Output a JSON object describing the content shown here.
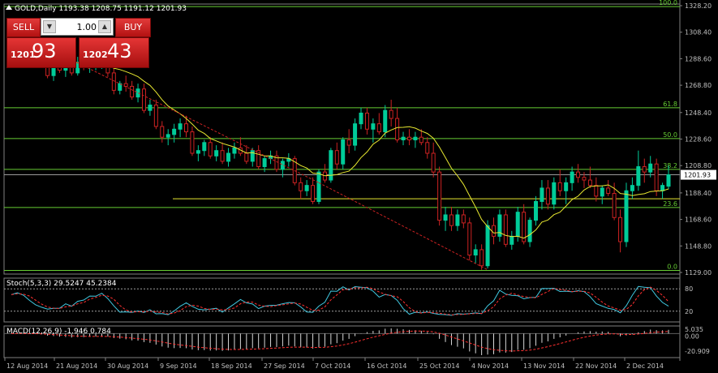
{
  "window": {
    "header": "GOLD,Daily  1193.38 1208.75 1191.12 1201.93"
  },
  "trade_panel": {
    "sell_label": "SELL",
    "buy_label": "BUY",
    "lot_value": "1.00",
    "sell_small": "1201",
    "sell_big": "93",
    "buy_small": "1202",
    "buy_big": "43"
  },
  "price_axis": {
    "ticks": [
      "1328.20",
      "1308.40",
      "1288.60",
      "1268.80",
      "1248.40",
      "1228.60",
      "1208.80",
      "1188.40",
      "1168.60",
      "1148.80",
      "1129.00"
    ],
    "current_price": "1201.93"
  },
  "fibonacci": {
    "levels": [
      {
        "label": "100.0",
        "price": 1327.5
      },
      {
        "label": "61.8",
        "price": 1252.0
      },
      {
        "label": "50.0",
        "price": 1229.0
      },
      {
        "label": "38.2",
        "price": 1206.0
      },
      {
        "label": "23.6",
        "price": 1177.5
      },
      {
        "label": "0.0",
        "price": 1130.5
      }
    ]
  },
  "date_axis": {
    "labels": [
      "12 Aug 2014",
      "21 Aug 2014",
      "30 Aug 2014",
      "9 Sep 2014",
      "18 Sep 2014",
      "27 Sep 2014",
      "7 Oct 2014",
      "16 Oct 2014",
      "25 Oct 2014",
      "4 Nov 2014",
      "13 Nov 2014",
      "22 Nov 2014",
      "2 Dec 2014"
    ]
  },
  "stoch": {
    "title": "Stoch(5,3,3) 29.5247 45.2384",
    "axis": [
      "80",
      "20"
    ]
  },
  "macd": {
    "title": "MACD(12,26,9) -1.946 0.784",
    "axis": [
      "5.035",
      "0.00",
      "-20.909"
    ]
  },
  "colors": {
    "background": "#000000",
    "bull": "#00cc99",
    "bear": "#cc2222",
    "fib": "#66cc33",
    "ma": "#e8e830",
    "stoch_main": "#40c8e0",
    "stoch_signal": "#ff3030",
    "grid_text": "#c0c0c0"
  },
  "chart_data": {
    "type": "candlestick",
    "ylim": [
      1129.0,
      1328.2
    ],
    "candles": [
      [
        1290,
        1300,
        1286,
        1295
      ],
      [
        1295,
        1302,
        1290,
        1298
      ],
      [
        1298,
        1304,
        1292,
        1295
      ],
      [
        1295,
        1300,
        1286,
        1290
      ],
      [
        1290,
        1296,
        1284,
        1292
      ],
      [
        1292,
        1298,
        1286,
        1290
      ],
      [
        1290,
        1294,
        1274,
        1276
      ],
      [
        1276,
        1290,
        1272,
        1285
      ],
      [
        1285,
        1292,
        1278,
        1280
      ],
      [
        1280,
        1286,
        1275,
        1283
      ],
      [
        1283,
        1289,
        1276,
        1278
      ],
      [
        1278,
        1290,
        1276,
        1286
      ],
      [
        1286,
        1292,
        1280,
        1284
      ],
      [
        1284,
        1290,
        1278,
        1285
      ],
      [
        1285,
        1292,
        1280,
        1287
      ],
      [
        1287,
        1293,
        1281,
        1289
      ],
      [
        1289,
        1292,
        1275,
        1278
      ],
      [
        1278,
        1283,
        1262,
        1265
      ],
      [
        1265,
        1272,
        1262,
        1270
      ],
      [
        1270,
        1276,
        1264,
        1268
      ],
      [
        1268,
        1272,
        1258,
        1260
      ],
      [
        1260,
        1270,
        1256,
        1266
      ],
      [
        1266,
        1270,
        1248,
        1250
      ],
      [
        1250,
        1258,
        1246,
        1254
      ],
      [
        1254,
        1258,
        1236,
        1238
      ],
      [
        1238,
        1242,
        1226,
        1230
      ],
      [
        1230,
        1236,
        1224,
        1232
      ],
      [
        1232,
        1240,
        1226,
        1236
      ],
      [
        1236,
        1244,
        1230,
        1240
      ],
      [
        1240,
        1246,
        1230,
        1234
      ],
      [
        1234,
        1238,
        1216,
        1218
      ],
      [
        1218,
        1224,
        1212,
        1220
      ],
      [
        1220,
        1228,
        1216,
        1226
      ],
      [
        1226,
        1230,
        1214,
        1216
      ],
      [
        1216,
        1224,
        1212,
        1220
      ],
      [
        1220,
        1226,
        1210,
        1212
      ],
      [
        1212,
        1222,
        1208,
        1218
      ],
      [
        1218,
        1226,
        1214,
        1222
      ],
      [
        1222,
        1230,
        1216,
        1218
      ],
      [
        1218,
        1224,
        1210,
        1212
      ],
      [
        1212,
        1222,
        1208,
        1220
      ],
      [
        1220,
        1224,
        1206,
        1208
      ],
      [
        1208,
        1216,
        1204,
        1214
      ],
      [
        1214,
        1220,
        1210,
        1216
      ],
      [
        1216,
        1220,
        1204,
        1206
      ],
      [
        1206,
        1214,
        1200,
        1212
      ],
      [
        1212,
        1218,
        1208,
        1214
      ],
      [
        1214,
        1216,
        1194,
        1196
      ],
      [
        1196,
        1200,
        1184,
        1190
      ],
      [
        1190,
        1198,
        1186,
        1194
      ],
      [
        1194,
        1200,
        1180,
        1182
      ],
      [
        1182,
        1206,
        1180,
        1204
      ],
      [
        1204,
        1210,
        1196,
        1198
      ],
      [
        1198,
        1222,
        1196,
        1220
      ],
      [
        1220,
        1226,
        1206,
        1210
      ],
      [
        1210,
        1230,
        1206,
        1228
      ],
      [
        1228,
        1236,
        1218,
        1224
      ],
      [
        1224,
        1244,
        1220,
        1240
      ],
      [
        1240,
        1252,
        1236,
        1248
      ],
      [
        1248,
        1252,
        1232,
        1236
      ],
      [
        1236,
        1244,
        1226,
        1240
      ],
      [
        1240,
        1248,
        1232,
        1234
      ],
      [
        1234,
        1254,
        1230,
        1250
      ],
      [
        1250,
        1258,
        1238,
        1244
      ],
      [
        1244,
        1252,
        1226,
        1228
      ],
      [
        1228,
        1234,
        1224,
        1230
      ],
      [
        1230,
        1236,
        1224,
        1228
      ],
      [
        1228,
        1234,
        1222,
        1230
      ],
      [
        1230,
        1236,
        1224,
        1226
      ],
      [
        1226,
        1230,
        1214,
        1218
      ],
      [
        1218,
        1226,
        1200,
        1204
      ],
      [
        1204,
        1208,
        1164,
        1168
      ],
      [
        1168,
        1178,
        1160,
        1172
      ],
      [
        1172,
        1178,
        1160,
        1164
      ],
      [
        1164,
        1176,
        1160,
        1172
      ],
      [
        1172,
        1176,
        1162,
        1166
      ],
      [
        1166,
        1170,
        1138,
        1142
      ],
      [
        1142,
        1150,
        1136,
        1146
      ],
      [
        1146,
        1150,
        1131,
        1134
      ],
      [
        1134,
        1168,
        1132,
        1164
      ],
      [
        1164,
        1170,
        1150,
        1156
      ],
      [
        1156,
        1176,
        1152,
        1172
      ],
      [
        1172,
        1176,
        1148,
        1150
      ],
      [
        1150,
        1160,
        1146,
        1156
      ],
      [
        1156,
        1178,
        1152,
        1174
      ],
      [
        1174,
        1180,
        1150,
        1152
      ],
      [
        1152,
        1170,
        1148,
        1168
      ],
      [
        1168,
        1186,
        1164,
        1182
      ],
      [
        1182,
        1198,
        1176,
        1192
      ],
      [
        1192,
        1198,
        1176,
        1180
      ],
      [
        1180,
        1200,
        1176,
        1196
      ],
      [
        1196,
        1206,
        1186,
        1190
      ],
      [
        1190,
        1200,
        1180,
        1196
      ],
      [
        1196,
        1208,
        1190,
        1204
      ],
      [
        1204,
        1210,
        1196,
        1200
      ],
      [
        1200,
        1204,
        1192,
        1198
      ],
      [
        1198,
        1208,
        1192,
        1194
      ],
      [
        1194,
        1200,
        1182,
        1186
      ],
      [
        1186,
        1194,
        1180,
        1192
      ],
      [
        1192,
        1198,
        1186,
        1188
      ],
      [
        1188,
        1196,
        1168,
        1170
      ],
      [
        1170,
        1176,
        1144,
        1152
      ],
      [
        1152,
        1196,
        1148,
        1190
      ],
      [
        1190,
        1200,
        1184,
        1194
      ],
      [
        1194,
        1220,
        1190,
        1208
      ],
      [
        1208,
        1214,
        1196,
        1204
      ],
      [
        1204,
        1216,
        1200,
        1210
      ],
      [
        1210,
        1214,
        1186,
        1190
      ],
      [
        1190,
        1196,
        1184,
        1194
      ],
      [
        1193.38,
        1208.75,
        1191.12,
        1201.93
      ]
    ]
  }
}
